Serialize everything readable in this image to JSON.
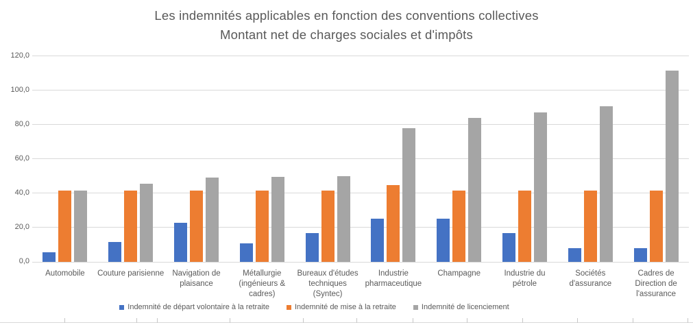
{
  "title": {
    "line1": "Les indemnités applicables en fonction des conventions collectives",
    "line2": "Montant net de charges sociales et d'impôts"
  },
  "chart_data": {
    "type": "bar",
    "title": "Les indemnités applicables en fonction des conventions collectives — Montant net de charges sociales et d'impôts",
    "categories": [
      "Automobile",
      "Couture parisienne",
      "Navigation de\nplaisance",
      "Métallurgie\n(ingénieurs &\ncadres)",
      "Bureaux d'études\ntechniques\n(Syntec)",
      "Industrie\npharmaceutique",
      "Champagne",
      "Industrie du\npétrole",
      "Sociétés\nd'assurance",
      "Cadres de\nDirection de\nl'assurance"
    ],
    "series": [
      {
        "name": "Indemnité de départ volontaire à la retraite",
        "color": "#4472C4",
        "values": [
          5.6,
          11.7,
          22.9,
          10.9,
          16.8,
          25.2,
          25.2,
          16.8,
          8.0,
          8.0
        ]
      },
      {
        "name": "Indemnité de mise à la retraite",
        "color": "#ED7D31",
        "values": [
          41.6,
          41.6,
          41.6,
          41.6,
          41.6,
          44.8,
          41.6,
          41.6,
          41.6,
          41.6
        ]
      },
      {
        "name": "Indemnité de licenciement",
        "color": "#A5A5A5",
        "values": [
          41.6,
          45.7,
          49.3,
          49.7,
          50.1,
          78.0,
          84.0,
          87.4,
          90.8,
          111.7
        ]
      }
    ],
    "xlabel": "",
    "ylabel": "",
    "ylim": [
      0,
      120
    ],
    "ytick_step": 20,
    "ytick_labels": [
      "0,0",
      "20,0",
      "40,0",
      "60,0",
      "80,0",
      "100,0",
      "120,0"
    ],
    "grid": true,
    "legend_position": "bottom",
    "colors": {
      "gridline": "#D9D9D9",
      "axis_text": "#595959",
      "title_text": "#595959"
    }
  },
  "worksheet": {
    "column_tick_xs": [
      94,
      199,
      229,
      335,
      442,
      520,
      602,
      681,
      762,
      842,
      923,
      1003
    ]
  }
}
